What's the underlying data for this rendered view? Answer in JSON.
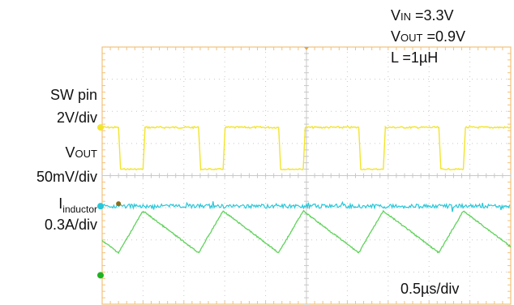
{
  "annotations": {
    "vin": {
      "first": "V",
      "smallcaps": "IN",
      "rest": " =3.3V"
    },
    "vout": {
      "first": "V",
      "smallcaps": "OUT",
      "rest": " =0.9V"
    },
    "inductance": "L =1µH",
    "timebase": "0.5µs/div"
  },
  "channel_labels": {
    "sw_name": "SW pin",
    "sw_scale": "2V/div",
    "vout_first": "V",
    "vout_smallcaps": "OUT",
    "vout_scale": "50mV/div",
    "il_main": "I",
    "il_sub": "inductor",
    "il_scale": "0.3A/div"
  },
  "colors": {
    "sw": "#f2e42a",
    "vout": "#27c7d9",
    "il": "#5fd35a",
    "grid_frame": "#f2c27a",
    "grid_dots": "#c8c8c8",
    "ground_marker": "#1fb31f"
  },
  "chart_data": {
    "type": "line",
    "xlabel": "",
    "ylabel": "",
    "grid": true,
    "x_divisions": 10,
    "y_divisions": 8,
    "time_per_div_us": 0.5,
    "series": [
      {
        "name": "SW pin",
        "shape": "square pulse train",
        "period_us": 0.98,
        "pulse_width_us": 0.3,
        "first_rise_time_us": 0.2,
        "low_level_div": -1.5,
        "high_level_div": -0.2
      },
      {
        "name": "VOUT",
        "shape": "DC with small noise",
        "level_div": 0.95
      },
      {
        "name": "Iinductor",
        "shape": "triangle wave",
        "period_us": 0.98,
        "peak_time_us": 0.5,
        "peak_level_div": 1.1,
        "valley_level_div": 2.4
      }
    ]
  }
}
